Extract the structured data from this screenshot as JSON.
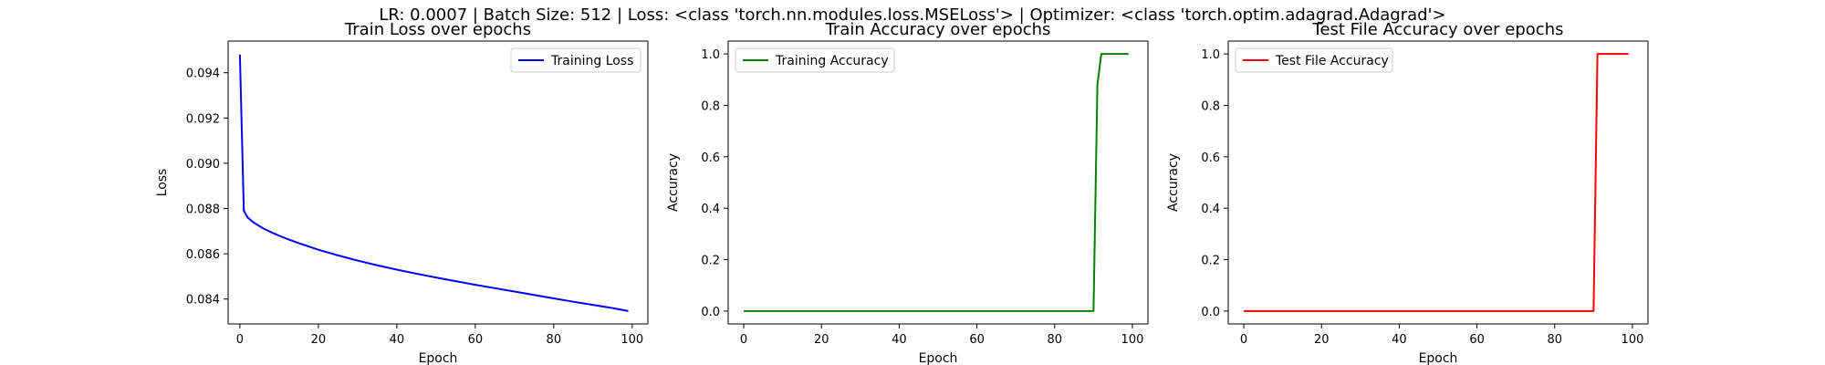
{
  "figure": {
    "suptitle": "LR: 0.0007 | Batch Size: 512 | Loss: <class 'torch.nn.modules.loss.MSELoss'> | Optimizer: <class 'torch.optim.adagrad.Adagrad'>"
  },
  "chart_data": [
    {
      "type": "line",
      "title": "Train Loss over epochs",
      "xlabel": "Epoch",
      "ylabel": "Loss",
      "xlim": [
        -3,
        104
      ],
      "ylim": [
        0.0829,
        0.0954
      ],
      "xticks": [
        0,
        20,
        40,
        60,
        80,
        100
      ],
      "yticks": [
        0.084,
        0.086,
        0.088,
        0.09,
        0.092,
        0.094
      ],
      "yticklabels": [
        "0.084",
        "0.086",
        "0.088",
        "0.090",
        "0.092",
        "0.094"
      ],
      "grid": false,
      "legend_position": "upper right",
      "series": [
        {
          "name": "Training Loss",
          "color": "#0000ff",
          "x": [
            0,
            1,
            2,
            3,
            4,
            5,
            6,
            8,
            10,
            12,
            15,
            20,
            25,
            30,
            35,
            40,
            45,
            50,
            55,
            60,
            65,
            70,
            75,
            80,
            85,
            90,
            95,
            99
          ],
          "y": [
            0.0948,
            0.0879,
            0.0876,
            0.08745,
            0.08733,
            0.08722,
            0.08712,
            0.08695,
            0.0868,
            0.08666,
            0.08647,
            0.08618,
            0.08593,
            0.0857,
            0.08549,
            0.0853,
            0.08512,
            0.08495,
            0.08479,
            0.08463,
            0.08448,
            0.08433,
            0.08418,
            0.08403,
            0.08388,
            0.08374,
            0.0836,
            0.08347
          ]
        }
      ]
    },
    {
      "type": "line",
      "title": "Train Accuracy over epochs",
      "xlabel": "Epoch",
      "ylabel": "Accuracy",
      "xlim": [
        -4,
        104
      ],
      "ylim": [
        -0.05,
        1.05
      ],
      "xticks": [
        0,
        20,
        40,
        60,
        80,
        100
      ],
      "yticks": [
        0.0,
        0.2,
        0.4,
        0.6,
        0.8,
        1.0
      ],
      "yticklabels": [
        "0.0",
        "0.2",
        "0.4",
        "0.6",
        "0.8",
        "1.0"
      ],
      "grid": false,
      "legend_position": "upper left",
      "series": [
        {
          "name": "Training Accuracy",
          "color": "#008000",
          "x": [
            0,
            90,
            91,
            92,
            99
          ],
          "y": [
            0.0,
            0.0,
            0.88,
            1.0,
            1.0
          ]
        }
      ]
    },
    {
      "type": "line",
      "title": "Test File Accuracy over epochs",
      "xlabel": "Epoch",
      "ylabel": "Accuracy",
      "xlim": [
        -4,
        104
      ],
      "ylim": [
        -0.05,
        1.05
      ],
      "xticks": [
        0,
        20,
        40,
        60,
        80,
        100
      ],
      "yticks": [
        0.0,
        0.2,
        0.4,
        0.6,
        0.8,
        1.0
      ],
      "yticklabels": [
        "0.0",
        "0.2",
        "0.4",
        "0.6",
        "0.8",
        "1.0"
      ],
      "grid": false,
      "legend_position": "upper left",
      "series": [
        {
          "name": "Test File Accuracy",
          "color": "#ff0000",
          "x": [
            0,
            90,
            91,
            99
          ],
          "y": [
            0.0,
            0.0,
            1.0,
            1.0
          ]
        }
      ]
    }
  ]
}
